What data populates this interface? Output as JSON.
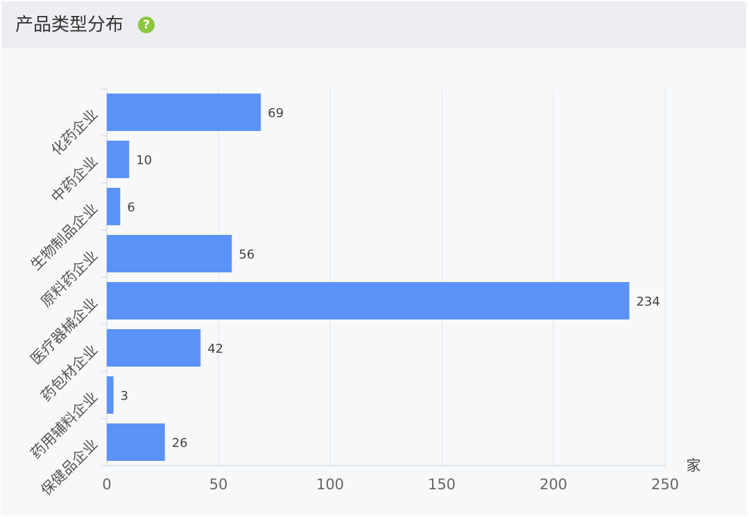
{
  "header": {
    "title": "产品类型分布",
    "help_icon": "question-icon",
    "help_glyph": "?"
  },
  "colors": {
    "bar": "#5b92f7",
    "help": "#8cc63f",
    "grid": "#e6eaf0",
    "axis": "#d8dde6"
  },
  "chart_data": {
    "type": "bar",
    "orientation": "horizontal",
    "categories": [
      "化药企业",
      "中药企业",
      "生物制品企业",
      "原料药企业",
      "医疗器械企业",
      "药包材企业",
      "药用辅料企业",
      "保健品企业"
    ],
    "values": [
      69,
      10,
      6,
      56,
      234,
      42,
      3,
      26
    ],
    "x_ticks": [
      0,
      50,
      100,
      150,
      200,
      250
    ],
    "xlim": [
      0,
      250
    ],
    "x_unit": "家",
    "grid": true,
    "data_labels": true
  }
}
